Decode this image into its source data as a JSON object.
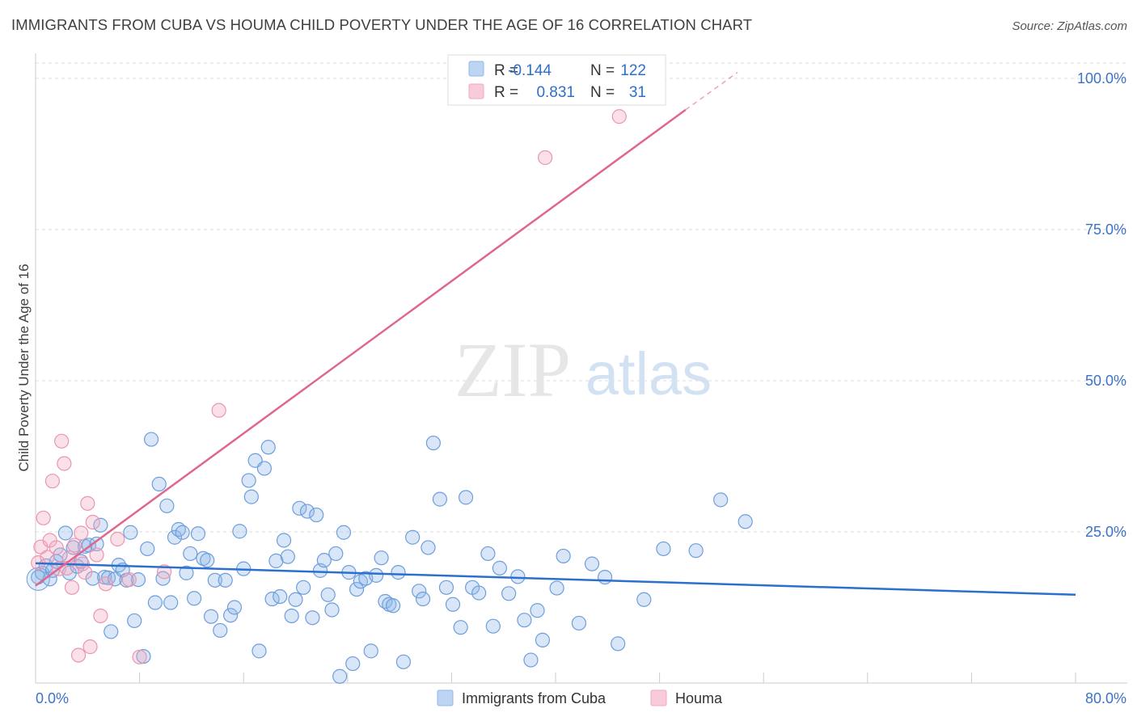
{
  "title": "IMMIGRANTS FROM CUBA VS HOUMA CHILD POVERTY UNDER THE AGE OF 16 CORRELATION CHART",
  "source": "Source: ZipAtlas.com",
  "watermark": {
    "zip": "ZIP",
    "atlas": "atlas"
  },
  "colors": {
    "blue": "#8fb7e8",
    "blue_line": "#2b6fcf",
    "pink": "#f2a9c0",
    "pink_line": "#e06690",
    "tick_text": "#3a73c8",
    "grid": "#dddddd"
  },
  "legend_top": [
    {
      "r_label": "R =",
      "r_value": "-0.144",
      "n_label": "N =",
      "n_value": "122"
    },
    {
      "r_label": "R =",
      "r_value": "0.831",
      "n_label": "N =",
      "n_value": "31"
    }
  ],
  "chart_data": {
    "type": "scatter",
    "title": "IMMIGRANTS FROM CUBA VS HOUMA CHILD POVERTY UNDER THE AGE OF 16 CORRELATION CHART",
    "xlabel": "",
    "ylabel": "Child Poverty Under the Age of 16",
    "xlim": [
      0,
      80
    ],
    "ylim": [
      0,
      105
    ],
    "x_tick_labels": [
      "0.0%",
      "80.0%"
    ],
    "y_ticks": [
      25,
      50,
      75,
      100
    ],
    "y_tick_labels": [
      "25.0%",
      "50.0%",
      "75.0%",
      "100.0%"
    ],
    "grid": true,
    "legend_position": "bottom",
    "series": [
      {
        "name": "Immigrants from Cuba",
        "color": "#8fb7e8",
        "trend": {
          "x": [
            0,
            80
          ],
          "y": [
            19.8,
            14.6
          ]
        },
        "points": [
          [
            0.2,
            17.5
          ],
          [
            0.5,
            18.2
          ],
          [
            0.8,
            19.4
          ],
          [
            1.1,
            17.2
          ],
          [
            1.3,
            18.6
          ],
          [
            1.6,
            20.1
          ],
          [
            1.9,
            21.2
          ],
          [
            2.3,
            24.8
          ],
          [
            2.6,
            18.2
          ],
          [
            2.9,
            22.4
          ],
          [
            3.2,
            19.3
          ],
          [
            3.5,
            20.1
          ],
          [
            3.8,
            22.6
          ],
          [
            4.1,
            22.8
          ],
          [
            4.4,
            17.3
          ],
          [
            4.7,
            23.0
          ],
          [
            5.0,
            26.1
          ],
          [
            5.3,
            17.5
          ],
          [
            5.6,
            17.4
          ],
          [
            5.8,
            8.5
          ],
          [
            6.1,
            17.2
          ],
          [
            6.4,
            19.5
          ],
          [
            6.7,
            18.7
          ],
          [
            7.0,
            17.0
          ],
          [
            7.3,
            24.9
          ],
          [
            7.6,
            10.3
          ],
          [
            7.9,
            17.1
          ],
          [
            8.3,
            4.4
          ],
          [
            8.6,
            22.2
          ],
          [
            8.9,
            40.3
          ],
          [
            9.2,
            13.3
          ],
          [
            9.5,
            32.9
          ],
          [
            9.8,
            17.3
          ],
          [
            10.1,
            29.3
          ],
          [
            10.4,
            13.3
          ],
          [
            10.7,
            24.1
          ],
          [
            11.0,
            25.4
          ],
          [
            11.3,
            24.9
          ],
          [
            11.6,
            18.2
          ],
          [
            11.9,
            21.4
          ],
          [
            12.2,
            14.0
          ],
          [
            12.5,
            24.7
          ],
          [
            12.9,
            20.6
          ],
          [
            13.2,
            20.3
          ],
          [
            13.5,
            11.0
          ],
          [
            13.8,
            17.0
          ],
          [
            14.2,
            8.7
          ],
          [
            14.6,
            17.0
          ],
          [
            15.0,
            11.2
          ],
          [
            15.3,
            12.5
          ],
          [
            15.7,
            25.1
          ],
          [
            16.0,
            18.9
          ],
          [
            16.4,
            33.5
          ],
          [
            16.6,
            30.8
          ],
          [
            16.9,
            36.8
          ],
          [
            17.2,
            5.3
          ],
          [
            17.6,
            35.5
          ],
          [
            17.9,
            39.0
          ],
          [
            18.2,
            13.9
          ],
          [
            18.5,
            20.2
          ],
          [
            18.8,
            14.3
          ],
          [
            19.1,
            23.6
          ],
          [
            19.4,
            20.9
          ],
          [
            19.7,
            11.1
          ],
          [
            20.0,
            13.8
          ],
          [
            20.3,
            28.9
          ],
          [
            20.6,
            15.8
          ],
          [
            20.9,
            28.4
          ],
          [
            21.3,
            10.8
          ],
          [
            21.6,
            27.8
          ],
          [
            21.9,
            18.6
          ],
          [
            22.2,
            20.3
          ],
          [
            22.5,
            14.6
          ],
          [
            22.8,
            12.1
          ],
          [
            23.1,
            21.4
          ],
          [
            23.4,
            1.1
          ],
          [
            23.7,
            24.9
          ],
          [
            24.1,
            18.3
          ],
          [
            24.4,
            3.2
          ],
          [
            24.7,
            15.5
          ],
          [
            25.0,
            16.8
          ],
          [
            25.4,
            17.3
          ],
          [
            25.8,
            5.3
          ],
          [
            26.2,
            17.8
          ],
          [
            26.6,
            20.7
          ],
          [
            26.9,
            13.5
          ],
          [
            27.2,
            13.0
          ],
          [
            27.5,
            12.8
          ],
          [
            27.9,
            18.3
          ],
          [
            28.3,
            3.5
          ],
          [
            29.0,
            24.1
          ],
          [
            29.5,
            15.2
          ],
          [
            29.8,
            13.9
          ],
          [
            30.2,
            22.4
          ],
          [
            30.6,
            39.7
          ],
          [
            31.1,
            30.4
          ],
          [
            31.6,
            15.8
          ],
          [
            32.1,
            13.0
          ],
          [
            32.7,
            9.2
          ],
          [
            33.1,
            30.7
          ],
          [
            33.6,
            15.8
          ],
          [
            34.1,
            14.9
          ],
          [
            34.8,
            21.4
          ],
          [
            35.2,
            9.4
          ],
          [
            35.7,
            19.0
          ],
          [
            36.4,
            14.8
          ],
          [
            37.1,
            17.6
          ],
          [
            37.6,
            10.4
          ],
          [
            38.1,
            3.8
          ],
          [
            38.6,
            12.0
          ],
          [
            39.0,
            7.1
          ],
          [
            40.1,
            15.7
          ],
          [
            40.6,
            21.0
          ],
          [
            41.8,
            9.9
          ],
          [
            42.8,
            19.7
          ],
          [
            43.8,
            17.5
          ],
          [
            44.8,
            6.5
          ],
          [
            46.8,
            13.8
          ],
          [
            48.3,
            22.2
          ],
          [
            50.8,
            21.9
          ],
          [
            52.7,
            30.3
          ],
          [
            54.6,
            26.7
          ]
        ]
      },
      {
        "name": "Houma",
        "color": "#f2a9c0",
        "trend": {
          "x": [
            0,
            50
          ],
          "y": [
            16.1,
            94.8
          ]
        },
        "trend_dash": {
          "x": [
            50,
            54
          ],
          "y": [
            94.8,
            101.0
          ]
        },
        "points": [
          [
            0.2,
            19.9
          ],
          [
            0.4,
            22.5
          ],
          [
            0.6,
            27.3
          ],
          [
            0.9,
            20.8
          ],
          [
            1.1,
            23.6
          ],
          [
            1.3,
            33.4
          ],
          [
            1.6,
            22.4
          ],
          [
            1.8,
            18.9
          ],
          [
            2.0,
            40.0
          ],
          [
            2.2,
            36.3
          ],
          [
            2.4,
            19.0
          ],
          [
            2.6,
            20.7
          ],
          [
            2.8,
            15.8
          ],
          [
            3.0,
            22.8
          ],
          [
            3.3,
            4.6
          ],
          [
            3.5,
            24.8
          ],
          [
            3.6,
            19.7
          ],
          [
            3.8,
            18.3
          ],
          [
            4.0,
            29.7
          ],
          [
            4.2,
            6.0
          ],
          [
            4.4,
            26.6
          ],
          [
            4.7,
            21.2
          ],
          [
            5.0,
            11.1
          ],
          [
            5.4,
            16.4
          ],
          [
            6.3,
            23.8
          ],
          [
            7.2,
            17.1
          ],
          [
            8.0,
            4.3
          ],
          [
            9.9,
            18.4
          ],
          [
            14.1,
            45.1
          ],
          [
            39.2,
            86.9
          ],
          [
            44.9,
            93.7
          ]
        ]
      }
    ]
  }
}
